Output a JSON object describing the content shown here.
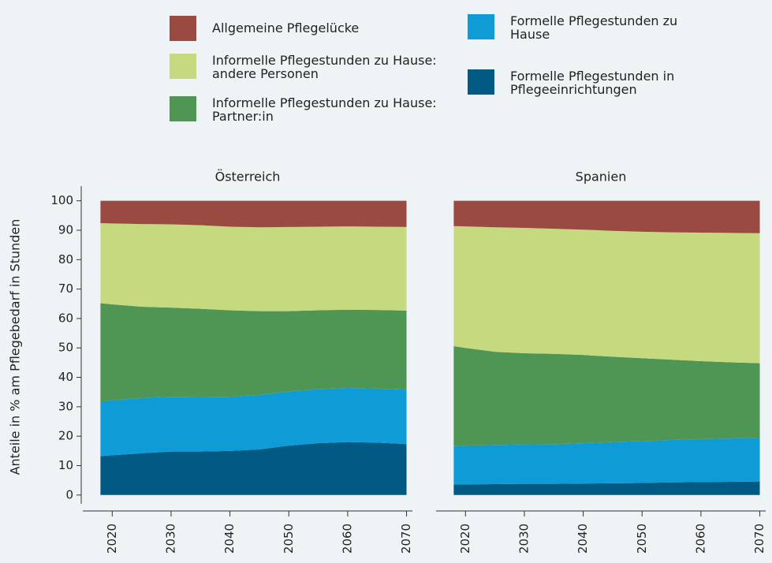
{
  "chart_data": [
    {
      "type": "area",
      "stacked": true,
      "title": "Österreich",
      "ylabel": "Anteile in % am Pflegebedarf in Stunden",
      "x": [
        2018,
        2020,
        2025,
        2030,
        2035,
        2040,
        2045,
        2050,
        2055,
        2060,
        2065,
        2070
      ],
      "xlim": [
        2015,
        2071
      ],
      "xticks": [
        2020,
        2030,
        2040,
        2050,
        2060,
        2070
      ],
      "ylim": [
        -3,
        105
      ],
      "yticks": [
        0,
        10,
        20,
        30,
        40,
        50,
        60,
        70,
        80,
        90,
        100
      ],
      "series": [
        {
          "name": "Formelle Pflegestunden in Pflegeeinrichtungen",
          "color": "#005a83",
          "values": [
            13.2,
            13.5,
            14.2,
            14.8,
            14.8,
            15.0,
            15.5,
            16.8,
            17.6,
            18.0,
            17.8,
            17.3
          ]
        },
        {
          "name": "Formelle Pflegestunden zu Hause",
          "color": "#0e9bd6",
          "values": [
            18.5,
            18.7,
            18.8,
            18.6,
            18.5,
            18.4,
            18.5,
            18.4,
            18.4,
            18.4,
            18.4,
            18.5
          ]
        },
        {
          "name": "Informelle Pflegestunden zu Hause: Partner:in",
          "color": "#4f9553",
          "values": [
            33.5,
            32.6,
            31.0,
            30.3,
            30.0,
            29.4,
            28.5,
            27.3,
            26.8,
            26.6,
            26.7,
            26.9
          ]
        },
        {
          "name": "Informelle Pflegestunden zu Hause: andere Personen",
          "color": "#c5d97f",
          "values": [
            27.2,
            27.5,
            28.1,
            28.3,
            28.4,
            28.4,
            28.5,
            28.6,
            28.4,
            28.3,
            28.3,
            28.4
          ]
        },
        {
          "name": "Allgemeine Pflegelücke",
          "color": "#9b4a42",
          "values": [
            7.6,
            7.7,
            7.9,
            8.0,
            8.3,
            8.8,
            9.0,
            8.9,
            8.8,
            8.7,
            8.8,
            8.9
          ]
        }
      ]
    },
    {
      "type": "area",
      "stacked": true,
      "title": "Spanien",
      "x": [
        2018,
        2020,
        2025,
        2030,
        2035,
        2040,
        2045,
        2050,
        2055,
        2060,
        2065,
        2070
      ],
      "xlim": [
        2015,
        2071
      ],
      "xticks": [
        2020,
        2030,
        2040,
        2050,
        2060,
        2070
      ],
      "ylim": [
        -3,
        105
      ],
      "series": [
        {
          "color": "#005a83",
          "values": [
            3.6,
            3.6,
            3.7,
            3.8,
            3.8,
            3.9,
            4.0,
            4.1,
            4.3,
            4.4,
            4.5,
            4.6
          ]
        },
        {
          "color": "#0e9bd6",
          "values": [
            13.0,
            13.2,
            13.3,
            13.4,
            13.5,
            13.7,
            14.0,
            14.2,
            14.4,
            14.6,
            14.7,
            14.9
          ]
        },
        {
          "color": "#4f9553",
          "values": [
            34.0,
            33.2,
            31.7,
            31.0,
            30.7,
            30.0,
            29.0,
            28.2,
            27.3,
            26.5,
            25.9,
            25.3
          ]
        },
        {
          "color": "#c5d97f",
          "values": [
            40.8,
            41.3,
            42.3,
            42.6,
            42.5,
            42.6,
            42.8,
            43.0,
            43.3,
            43.7,
            44.0,
            44.2
          ]
        },
        {
          "color": "#9b4a42",
          "values": [
            8.6,
            8.7,
            9.0,
            9.2,
            9.5,
            9.8,
            10.2,
            10.5,
            10.7,
            10.8,
            10.9,
            11.0
          ]
        }
      ]
    }
  ]
}
